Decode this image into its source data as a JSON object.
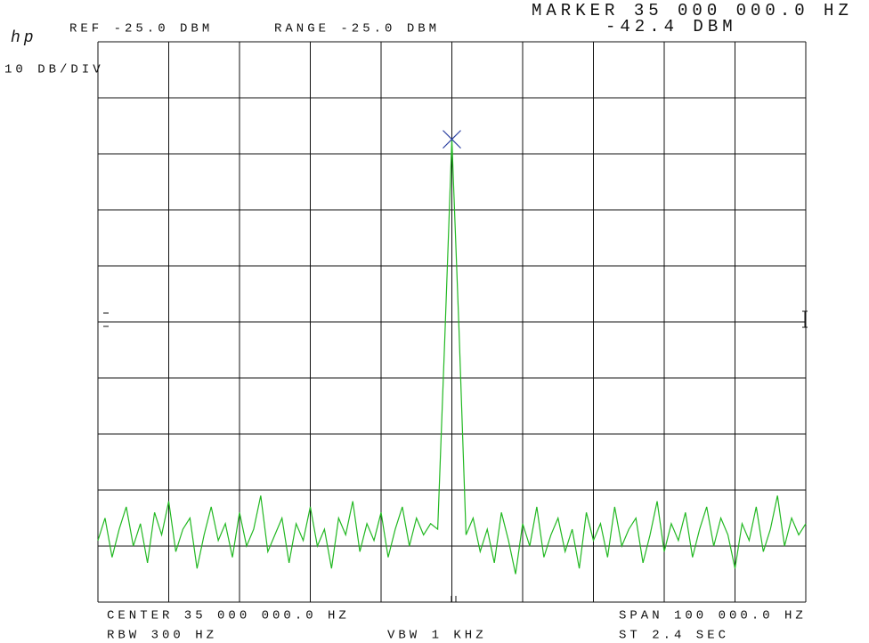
{
  "chart_data": {
    "type": "line",
    "logo": "hp",
    "ref_label": "REF -25.0 DBM",
    "range_label": "RANGE -25.0 DBM",
    "scale_label": "10 DB/DIV",
    "center_label": "CENTER 35 000 000.0 HZ",
    "span_label": "SPAN 100 000.0 HZ",
    "rbw_label": "RBW 300 HZ",
    "vbw_label": "VBW 1 KHZ",
    "sweep_label": "ST 2.4 SEC",
    "marker": {
      "x": 35000000,
      "y": -42.4,
      "text": [
        "MARKER 35 000 000.0 HZ",
        "-42.4 DBM"
      ],
      "color": "#2a3fa0"
    },
    "color": "#22b822",
    "xlim": [
      34950000,
      35050000
    ],
    "ylim": [
      -125,
      -25
    ],
    "xticks": [
      34950000,
      34960000,
      34970000,
      34980000,
      34990000,
      35000000,
      35010000,
      35020000,
      35030000,
      35040000,
      35050000
    ],
    "yticks": [
      -125,
      -115,
      -105,
      -95,
      -85,
      -75,
      -65,
      -55,
      -45,
      -35,
      -25
    ],
    "grid": true,
    "x": [
      34950000,
      34951000,
      34952000,
      34953000,
      34954000,
      34955000,
      34956000,
      34957000,
      34958000,
      34959000,
      34960000,
      34961000,
      34962000,
      34963000,
      34964000,
      34965000,
      34966000,
      34967000,
      34968000,
      34969000,
      34970000,
      34971000,
      34972000,
      34973000,
      34974000,
      34975000,
      34976000,
      34977000,
      34978000,
      34979000,
      34980000,
      34981000,
      34982000,
      34983000,
      34984000,
      34985000,
      34986000,
      34987000,
      34988000,
      34989000,
      34990000,
      34991000,
      34992000,
      34993000,
      34994000,
      34995000,
      34996000,
      34997000,
      34998000,
      34999000,
      35000000,
      35001000,
      35002000,
      35003000,
      35004000,
      35005000,
      35006000,
      35007000,
      35008000,
      35009000,
      35010000,
      35011000,
      35012000,
      35013000,
      35014000,
      35015000,
      35016000,
      35017000,
      35018000,
      35019000,
      35020000,
      35021000,
      35022000,
      35023000,
      35024000,
      35025000,
      35026000,
      35027000,
      35028000,
      35029000,
      35030000,
      35031000,
      35032000,
      35033000,
      35034000,
      35035000,
      35036000,
      35037000,
      35038000,
      35039000,
      35040000,
      35041000,
      35042000,
      35043000,
      35044000,
      35045000,
      35046000,
      35047000,
      35048000,
      35049000,
      35050000
    ],
    "values": [
      -114,
      -110,
      -117,
      -112,
      -108,
      -115,
      -111,
      -118,
      -109,
      -113,
      -107,
      -116,
      -112,
      -110,
      -119,
      -113,
      -108,
      -114,
      -111,
      -117,
      -109,
      -115,
      -112,
      -106,
      -116,
      -113,
      -110,
      -118,
      -111,
      -114,
      -108,
      -115,
      -112,
      -119,
      -110,
      -113,
      -107,
      -116,
      -111,
      -114,
      -109,
      -117,
      -112,
      -108,
      -115,
      -110,
      -113,
      -111,
      -112,
      -78,
      -42.4,
      -76,
      -113,
      -110,
      -116,
      -112,
      -118,
      -109,
      -114,
      -120,
      -111,
      -115,
      -108,
      -117,
      -113,
      -110,
      -116,
      -112,
      -119,
      -109,
      -114,
      -111,
      -117,
      -108,
      -115,
      -112,
      -110,
      -118,
      -113,
      -107,
      -116,
      -111,
      -114,
      -109,
      -117,
      -112,
      -108,
      -115,
      -110,
      -113,
      -119,
      -111,
      -114,
      -108,
      -116,
      -112,
      -106,
      -115,
      -110,
      -113,
      -111
    ]
  }
}
